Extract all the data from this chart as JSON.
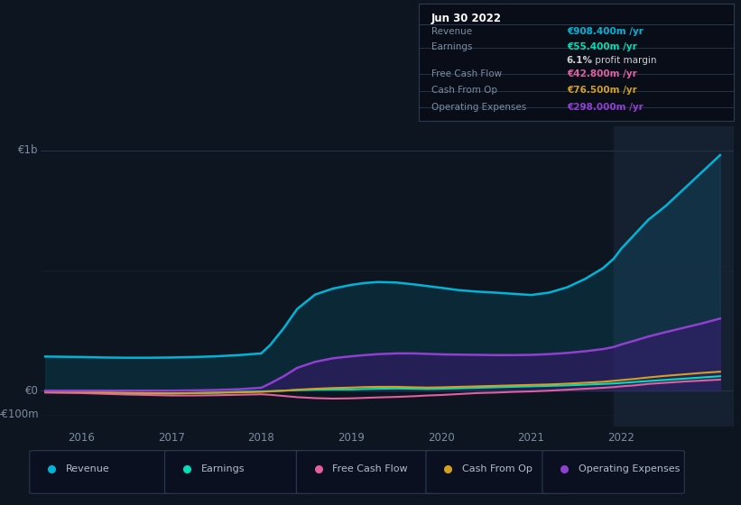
{
  "bg_color": "#0d1520",
  "plot_bg_color": "#0d1520",
  "highlight_bg": "#14202e",
  "ymin": -150,
  "ymax": 1100,
  "xmin": 2015.55,
  "xmax": 2023.25,
  "years": [
    2015.6,
    2016.0,
    2016.25,
    2016.5,
    2016.75,
    2017.0,
    2017.25,
    2017.5,
    2017.75,
    2018.0,
    2018.1,
    2018.25,
    2018.4,
    2018.6,
    2018.8,
    2019.0,
    2019.15,
    2019.3,
    2019.5,
    2019.7,
    2019.85,
    2020.0,
    2020.2,
    2020.4,
    2020.6,
    2020.8,
    2021.0,
    2021.2,
    2021.4,
    2021.6,
    2021.8,
    2021.92,
    2022.0,
    2022.15,
    2022.3,
    2022.5,
    2022.7,
    2022.9,
    2023.1
  ],
  "revenue": [
    142,
    140,
    138,
    137,
    137,
    138,
    140,
    143,
    148,
    155,
    190,
    260,
    340,
    400,
    425,
    440,
    448,
    452,
    450,
    442,
    435,
    428,
    418,
    412,
    408,
    403,
    398,
    408,
    430,
    465,
    510,
    550,
    590,
    650,
    710,
    770,
    840,
    910,
    980
  ],
  "earnings": [
    -5,
    -6,
    -8,
    -10,
    -12,
    -12,
    -10,
    -8,
    -5,
    -3,
    -2,
    0,
    2,
    4,
    5,
    5,
    7,
    8,
    9,
    8,
    7,
    8,
    10,
    12,
    14,
    16,
    18,
    20,
    22,
    25,
    28,
    30,
    32,
    36,
    40,
    45,
    50,
    55,
    60
  ],
  "fcf": [
    -8,
    -10,
    -13,
    -16,
    -18,
    -20,
    -20,
    -19,
    -17,
    -15,
    -17,
    -22,
    -27,
    -31,
    -33,
    -32,
    -30,
    -28,
    -26,
    -23,
    -20,
    -18,
    -14,
    -10,
    -8,
    -5,
    -3,
    0,
    4,
    8,
    12,
    15,
    18,
    22,
    28,
    33,
    38,
    42,
    46
  ],
  "cash_op": [
    -3,
    -5,
    -7,
    -9,
    -10,
    -11,
    -10,
    -9,
    -7,
    -5,
    -3,
    0,
    4,
    8,
    11,
    13,
    15,
    16,
    16,
    14,
    13,
    14,
    16,
    18,
    20,
    22,
    24,
    26,
    29,
    33,
    37,
    41,
    44,
    49,
    55,
    62,
    68,
    74,
    79
  ],
  "op_expenses": [
    0,
    0,
    0,
    0,
    0,
    0,
    1,
    3,
    6,
    12,
    30,
    60,
    95,
    120,
    135,
    143,
    148,
    152,
    155,
    155,
    153,
    151,
    150,
    149,
    148,
    148,
    149,
    152,
    157,
    164,
    173,
    182,
    192,
    208,
    225,
    244,
    262,
    280,
    300
  ],
  "revenue_color": "#00b4d8",
  "earnings_color": "#00e0b8",
  "fcf_color": "#e060a0",
  "cash_op_color": "#d4a020",
  "op_expenses_color": "#9040d0",
  "line_width": 1.8,
  "highlight_x_start": 2021.92,
  "highlight_x_end": 2023.25,
  "table_title": "Jun 30 2022",
  "table_data": [
    {
      "label": "Revenue",
      "value": "€908.400m /yr",
      "color": "#00b4d8",
      "sep": true
    },
    {
      "label": "Earnings",
      "value": "€55.400m /yr",
      "color": "#00e0b8",
      "sep": false
    },
    {
      "label": "",
      "value": "6.1% profit margin",
      "color": "#d0d0d0",
      "sep": true,
      "bold_part": "6.1%"
    },
    {
      "label": "Free Cash Flow",
      "value": "€42.800m /yr",
      "color": "#e060a0",
      "sep": true
    },
    {
      "label": "Cash From Op",
      "value": "€76.500m /yr",
      "color": "#d4a020",
      "sep": true
    },
    {
      "label": "Operating Expenses",
      "value": "€298.000m /yr",
      "color": "#9040d0",
      "sep": false
    }
  ],
  "legend_items": [
    {
      "label": "Revenue",
      "color": "#00b4d8"
    },
    {
      "label": "Earnings",
      "color": "#00e0b8"
    },
    {
      "label": "Free Cash Flow",
      "color": "#e060a0"
    },
    {
      "label": "Cash From Op",
      "color": "#d4a020"
    },
    {
      "label": "Operating Expenses",
      "color": "#9040d0"
    }
  ],
  "xticks": [
    2016,
    2017,
    2018,
    2019,
    2020,
    2021,
    2022
  ],
  "ylabel_1b": "€1b",
  "ylabel_0": "€0",
  "ylabel_neg100": "-€100m"
}
